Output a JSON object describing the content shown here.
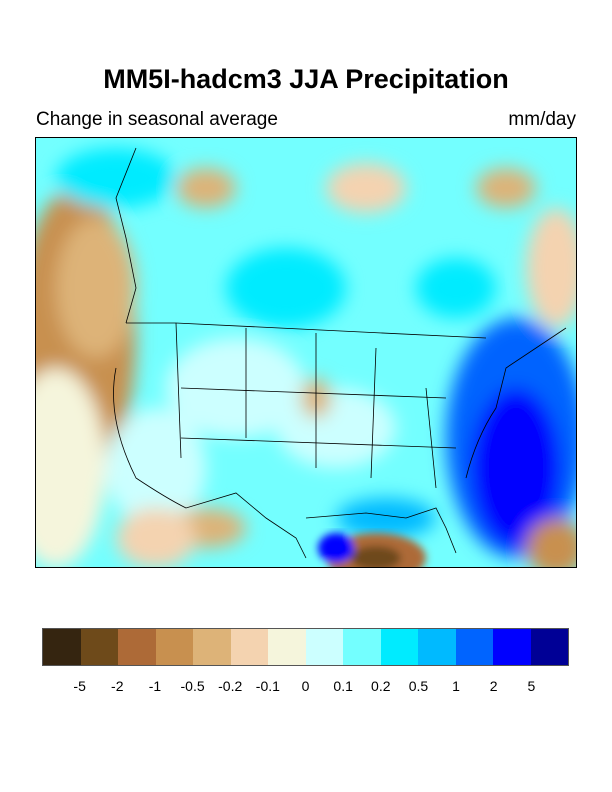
{
  "title": "MM5I-hadcm3 JJA Precipitation",
  "subtitle": "Change in seasonal average",
  "units": "mm/day",
  "colorbar": {
    "colors": [
      "#352510",
      "#6e4a1a",
      "#ad6a37",
      "#c8904f",
      "#ddb378",
      "#f4d3b0",
      "#f5f5dc",
      "#ccffff",
      "#73ffff",
      "#00ebff",
      "#00baff",
      "#0064ff",
      "#0000ff",
      "#000096"
    ],
    "labels": [
      "-5",
      "-2",
      "-1",
      "-0.5",
      "-0.2",
      "-0.1",
      "0",
      "0.1",
      "0.2",
      "0.5",
      "1",
      "2",
      "5"
    ]
  }
}
